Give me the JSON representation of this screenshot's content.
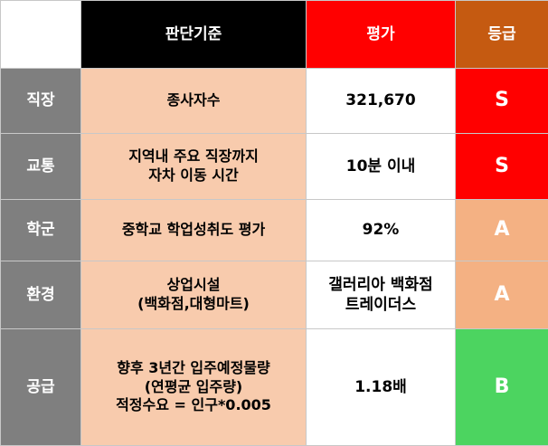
{
  "header": {
    "blank": "",
    "criteria": "판단기준",
    "evaluation": "평가",
    "grade": "등급"
  },
  "colors": {
    "header_criteria_bg": "#000000",
    "header_eval_bg": "#ff0000",
    "header_grade_bg": "#c55a11",
    "category_bg": "#7f7f7f",
    "criteria_bg": "#f8cbad",
    "grade_S": "#ff0000",
    "grade_A": "#f4b183",
    "grade_B": "#4cd460"
  },
  "rows": [
    {
      "category": "직장",
      "criteria": [
        "종사자수"
      ],
      "value": [
        "321,670"
      ],
      "grade": "S"
    },
    {
      "category": "교통",
      "criteria": [
        "지역내 주요 직장까지",
        "자차 이동 시간"
      ],
      "value": [
        "10분 이내"
      ],
      "grade": "S"
    },
    {
      "category": "학군",
      "criteria": [
        "중학교 학업성취도 평가"
      ],
      "value": [
        "92%"
      ],
      "grade": "A"
    },
    {
      "category": "환경",
      "criteria": [
        "상업시설",
        "(백화점,대형마트)"
      ],
      "value": [
        "갤러리아 백화점",
        "트레이더스"
      ],
      "grade": "A"
    },
    {
      "category": "공급",
      "criteria": [
        "향후 3년간 입주예정물량",
        "(연평균 입주량)",
        "적정수요 = 인구*0.005"
      ],
      "value": [
        "1.18배"
      ],
      "grade": "B"
    }
  ]
}
